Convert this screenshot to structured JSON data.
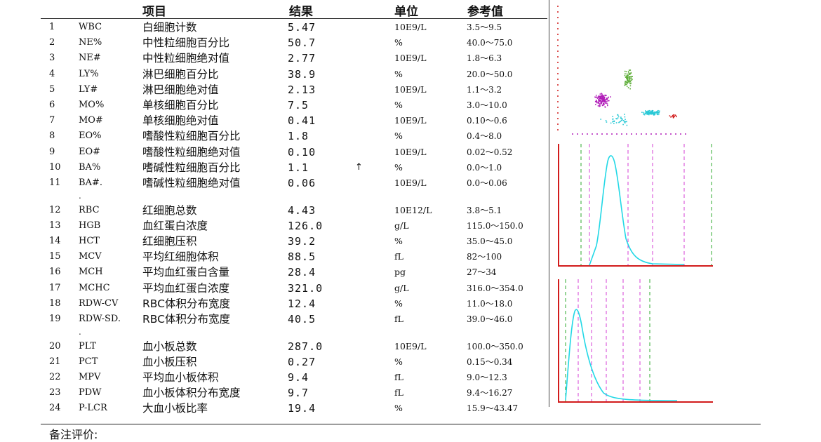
{
  "headers": {
    "item": "项目",
    "result": "结果",
    "unit": "单位",
    "reference": "参考值"
  },
  "rows": [
    {
      "no": "1",
      "code": "WBC",
      "name": "白细胞计数",
      "result": "5.47",
      "flag": "",
      "unit": "10E9/L",
      "ref": "3.5～9.5"
    },
    {
      "no": "2",
      "code": "NE%",
      "name": "中性粒细胞百分比",
      "result": "50.7",
      "flag": "",
      "unit": "%",
      "ref": "40.0～75.0"
    },
    {
      "no": "3",
      "code": "NE#",
      "name": "中性粒细胞绝对值",
      "result": "2.77",
      "flag": "",
      "unit": "10E9/L",
      "ref": "1.8～6.3"
    },
    {
      "no": "4",
      "code": "LY%",
      "name": "淋巴细胞百分比",
      "result": "38.9",
      "flag": "",
      "unit": "%",
      "ref": "20.0～50.0"
    },
    {
      "no": "5",
      "code": "LY#",
      "name": "淋巴细胞绝对值",
      "result": "2.13",
      "flag": "",
      "unit": "10E9/L",
      "ref": "1.1～3.2"
    },
    {
      "no": "6",
      "code": "MO%",
      "name": "单核细胞百分比",
      "result": "7.5",
      "flag": "",
      "unit": "%",
      "ref": "3.0～10.0"
    },
    {
      "no": "7",
      "code": "MO#",
      "name": "单核细胞绝对值",
      "result": "0.41",
      "flag": "",
      "unit": "10E9/L",
      "ref": "0.10～0.6"
    },
    {
      "no": "8",
      "code": "EO%",
      "name": "嗜酸性粒细胞百分比",
      "result": "1.8",
      "flag": "",
      "unit": "%",
      "ref": "0.4～8.0"
    },
    {
      "no": "9",
      "code": "EO#",
      "name": "嗜酸性粒细胞绝对值",
      "result": "0.10",
      "flag": "",
      "unit": "10E9/L",
      "ref": "0.02～0.52"
    },
    {
      "no": "10",
      "code": "BA%",
      "name": "嗜碱性粒细胞百分比",
      "result": "1.1",
      "flag": "↑",
      "unit": "%",
      "ref": "0.0～1.0"
    },
    {
      "no": "11",
      "code": "BA#.",
      "name": "嗜碱性粒细胞绝对值",
      "result": "0.06",
      "flag": "",
      "unit": "10E9/L",
      "ref": "0.0～0.06"
    },
    {
      "no": "12",
      "code": "RBC",
      "name": "红细胞总数",
      "result": "4.43",
      "flag": "",
      "unit": "10E12/L",
      "ref": "3.8～5.1"
    },
    {
      "no": "13",
      "code": "HGB",
      "name": "血红蛋白浓度",
      "result": "126.0",
      "flag": "",
      "unit": "g/L",
      "ref": "115.0～150.0"
    },
    {
      "no": "14",
      "code": "HCT",
      "name": "红细胞压积",
      "result": "39.2",
      "flag": "",
      "unit": "%",
      "ref": "35.0～45.0"
    },
    {
      "no": "15",
      "code": "MCV",
      "name": "平均红细胞体积",
      "result": "88.5",
      "flag": "",
      "unit": "fL",
      "ref": "82～100"
    },
    {
      "no": "16",
      "code": "MCH",
      "name": "平均血红蛋白含量",
      "result": "28.4",
      "flag": "",
      "unit": "pg",
      "ref": "27～34"
    },
    {
      "no": "17",
      "code": "MCHC",
      "name": "平均血红蛋白浓度",
      "result": "321.0",
      "flag": "",
      "unit": "g/L",
      "ref": "316.0～354.0"
    },
    {
      "no": "18",
      "code": "RDW-CV",
      "name": "RBC体积分布宽度",
      "result": "12.4",
      "flag": "",
      "unit": "%",
      "ref": "11.0～18.0"
    },
    {
      "no": "19",
      "code": "RDW-SD.",
      "name": "RBC体积分布宽度",
      "result": "40.5",
      "flag": "",
      "unit": "fL",
      "ref": "39.0～46.0"
    },
    {
      "no": "20",
      "code": "PLT",
      "name": "血小板总数",
      "result": "287.0",
      "flag": "",
      "unit": "10E9/L",
      "ref": "100.0～350.0"
    },
    {
      "no": "21",
      "code": "PCT",
      "name": "血小板压积",
      "result": "0.27",
      "flag": "",
      "unit": "%",
      "ref": "0.15～0.34"
    },
    {
      "no": "22",
      "code": "MPV",
      "name": "平均血小板体积",
      "result": "9.4",
      "flag": "",
      "unit": "fL",
      "ref": "9.0～12.3"
    },
    {
      "no": "23",
      "code": "PDW",
      "name": "血小板体积分布宽度",
      "result": "9.7",
      "flag": "",
      "unit": "fL",
      "ref": "9.4～16.27"
    },
    {
      "no": "24",
      "code": "P-LCR",
      "name": "大血小板比率",
      "result": "19.4",
      "flag": "",
      "unit": "%",
      "ref": "15.9～43.47"
    }
  ],
  "separator": ".",
  "remark_label": "备注评价:",
  "colors": {
    "scatter_mono": "#2bc9d6",
    "scatter_lymph": "#b01cb8",
    "scatter_neut": "#5fae3a",
    "histogram_curve": "#22d8e6",
    "axis": "#d21b1b",
    "marker_green": "#2ca82c",
    "marker_magenta": "#d43fd4"
  }
}
